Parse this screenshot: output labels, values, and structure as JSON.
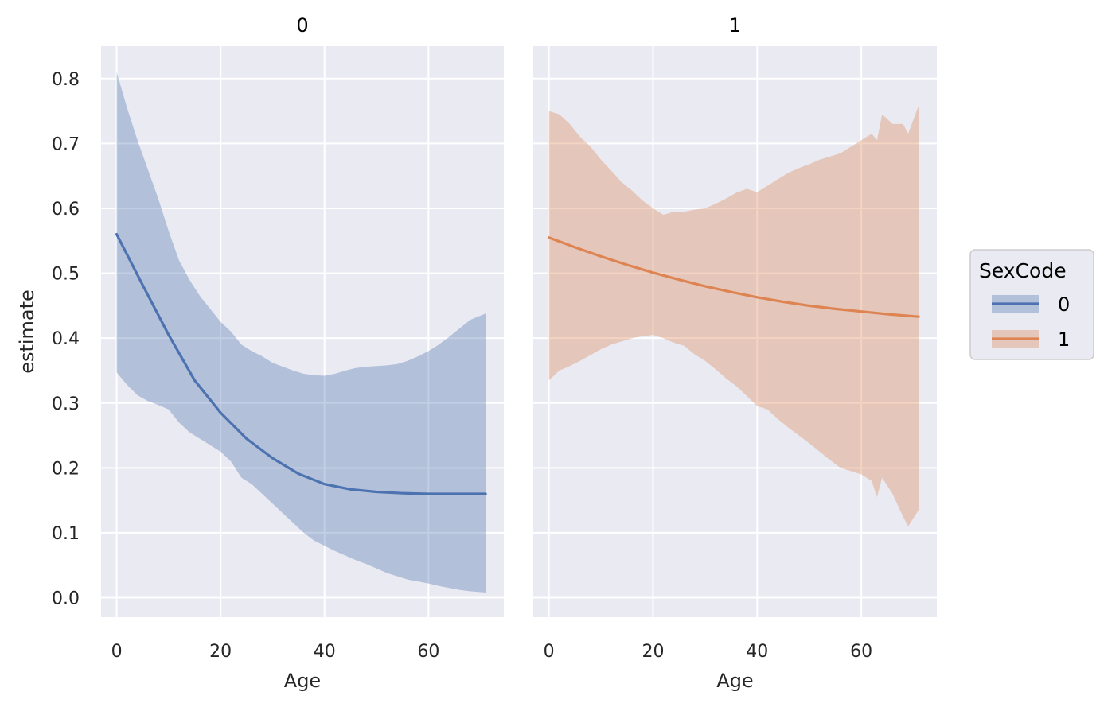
{
  "chart_data": {
    "type": "line",
    "facet_variable": "SexCode",
    "legend": {
      "title": "SexCode",
      "placement": "right",
      "entries": [
        "0",
        "1"
      ]
    },
    "ylabel": "estimate",
    "ylim": [
      -0.03,
      0.85
    ],
    "yticks": [
      0.0,
      0.1,
      0.2,
      0.3,
      0.4,
      0.5,
      0.6,
      0.7,
      0.8
    ],
    "ytick_labels": [
      "0.0",
      "0.1",
      "0.2",
      "0.3",
      "0.4",
      "0.5",
      "0.6",
      "0.7",
      "0.8"
    ],
    "grid": true,
    "colors": {
      "0": "#4c72b0",
      "1": "#dd8452",
      "panel_bg": "#eaeaf2",
      "grid": "#ffffff"
    },
    "panels": [
      {
        "title": "0",
        "xlabel": "Age",
        "xlim": [
          -3,
          74.5
        ],
        "xticks": [
          0,
          20,
          40,
          60
        ],
        "xtick_labels": [
          "0",
          "20",
          "40",
          "60"
        ],
        "series_name": "0",
        "line": {
          "x": [
            0,
            5,
            10,
            15,
            20,
            25,
            30,
            35,
            40,
            45,
            50,
            55,
            60,
            65,
            71
          ],
          "y": [
            0.56,
            0.482,
            0.405,
            0.335,
            0.285,
            0.245,
            0.215,
            0.191,
            0.175,
            0.167,
            0.163,
            0.161,
            0.16,
            0.16,
            0.16
          ]
        },
        "band": {
          "x": [
            0,
            2,
            4,
            6,
            8,
            10,
            12,
            14,
            16,
            18,
            20,
            22,
            24,
            26,
            28,
            30,
            32,
            34,
            36,
            38,
            40,
            42,
            44,
            46,
            48,
            50,
            52,
            54,
            56,
            58,
            60,
            62,
            64,
            66,
            68,
            71
          ],
          "lower": [
            0.347,
            0.328,
            0.312,
            0.303,
            0.297,
            0.29,
            0.27,
            0.255,
            0.245,
            0.235,
            0.225,
            0.21,
            0.185,
            0.175,
            0.16,
            0.145,
            0.13,
            0.115,
            0.1,
            0.088,
            0.08,
            0.072,
            0.065,
            0.058,
            0.052,
            0.045,
            0.038,
            0.033,
            0.028,
            0.025,
            0.022,
            0.018,
            0.015,
            0.012,
            0.01,
            0.008
          ],
          "upper": [
            0.81,
            0.755,
            0.705,
            0.66,
            0.615,
            0.565,
            0.52,
            0.49,
            0.465,
            0.445,
            0.425,
            0.41,
            0.39,
            0.38,
            0.372,
            0.362,
            0.356,
            0.35,
            0.345,
            0.343,
            0.342,
            0.345,
            0.35,
            0.354,
            0.356,
            0.357,
            0.358,
            0.36,
            0.365,
            0.372,
            0.38,
            0.39,
            0.402,
            0.415,
            0.428,
            0.438
          ]
        }
      },
      {
        "title": "1",
        "xlabel": "Age",
        "xlim": [
          -3,
          74.5
        ],
        "xticks": [
          0,
          20,
          40,
          60
        ],
        "xtick_labels": [
          "0",
          "20",
          "40",
          "60"
        ],
        "series_name": "1",
        "line": {
          "x": [
            0,
            5,
            10,
            15,
            20,
            25,
            30,
            35,
            40,
            45,
            50,
            55,
            60,
            65,
            71
          ],
          "y": [
            0.555,
            0.54,
            0.526,
            0.513,
            0.501,
            0.49,
            0.48,
            0.471,
            0.463,
            0.456,
            0.45,
            0.445,
            0.441,
            0.437,
            0.433
          ]
        },
        "band": {
          "x": [
            0,
            2,
            4,
            6,
            8,
            10,
            12,
            14,
            16,
            18,
            20,
            22,
            24,
            26,
            28,
            30,
            32,
            34,
            36,
            38,
            40,
            42,
            44,
            46,
            48,
            50,
            52,
            54,
            56,
            58,
            60,
            62,
            63,
            64,
            66,
            68,
            69,
            71
          ],
          "lower": [
            0.335,
            0.35,
            0.357,
            0.365,
            0.374,
            0.383,
            0.39,
            0.395,
            0.4,
            0.403,
            0.405,
            0.4,
            0.393,
            0.388,
            0.375,
            0.365,
            0.352,
            0.338,
            0.326,
            0.311,
            0.295,
            0.29,
            0.275,
            0.262,
            0.25,
            0.238,
            0.225,
            0.212,
            0.2,
            0.195,
            0.19,
            0.18,
            0.155,
            0.185,
            0.16,
            0.125,
            0.11,
            0.135
          ],
          "upper": [
            0.75,
            0.745,
            0.73,
            0.71,
            0.695,
            0.675,
            0.658,
            0.64,
            0.627,
            0.612,
            0.6,
            0.59,
            0.595,
            0.595,
            0.598,
            0.6,
            0.607,
            0.615,
            0.624,
            0.63,
            0.625,
            0.635,
            0.645,
            0.655,
            0.662,
            0.668,
            0.675,
            0.68,
            0.685,
            0.695,
            0.705,
            0.715,
            0.705,
            0.745,
            0.73,
            0.73,
            0.715,
            0.758
          ]
        }
      }
    ]
  }
}
